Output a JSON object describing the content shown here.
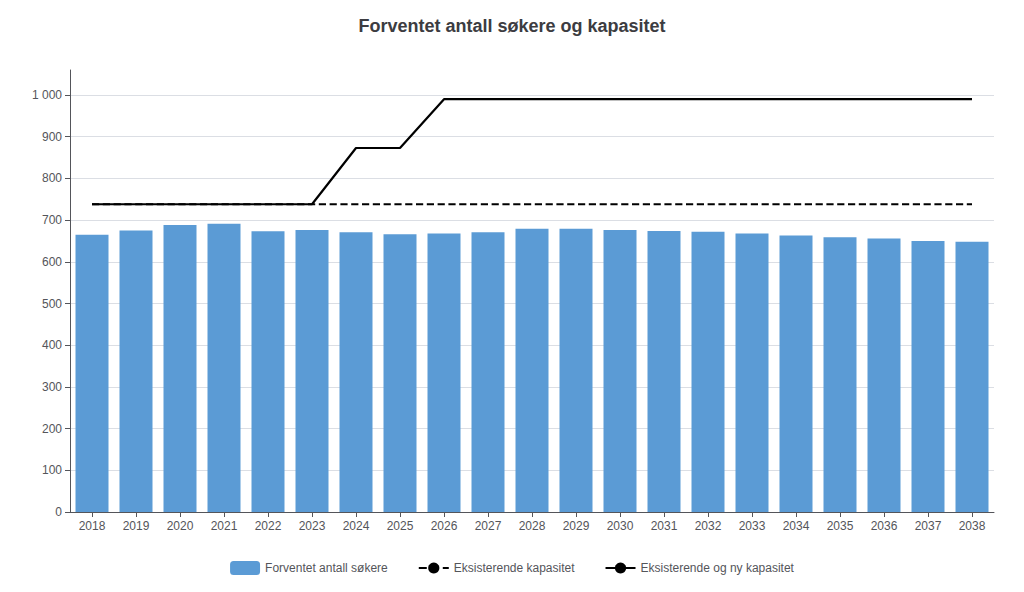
{
  "chart_data": {
    "type": "bar",
    "title": "Forventet antall søkere og kapasitet",
    "categories": [
      2018,
      2019,
      2020,
      2021,
      2022,
      2023,
      2024,
      2025,
      2026,
      2027,
      2028,
      2029,
      2030,
      2031,
      2032,
      2033,
      2034,
      2035,
      2036,
      2037,
      2038
    ],
    "series": [
      {
        "name": "Forventet antall søkere",
        "type": "bar",
        "color": "#5B9BD5",
        "values": [
          665,
          675,
          688,
          691,
          673,
          676,
          671,
          666,
          668,
          671,
          679,
          679,
          676,
          674,
          672,
          668,
          663,
          659,
          656,
          650,
          648
        ]
      },
      {
        "name": "Eksisterende kapasitet",
        "type": "line",
        "line_style": "dashed",
        "color": "#000000",
        "x": [
          2018,
          2038
        ],
        "values": [
          738,
          738
        ]
      },
      {
        "name": "Eksisterende og ny kapasitet",
        "type": "line",
        "line_style": "solid",
        "color": "#000000",
        "x": [
          2018,
          2023,
          2024,
          2025,
          2026,
          2038
        ],
        "values": [
          738,
          738,
          873,
          873,
          990,
          990
        ]
      }
    ],
    "ylim": [
      0,
      1060
    ],
    "yticks": [
      0,
      100,
      200,
      300,
      400,
      500,
      600,
      700,
      800,
      900,
      {
        "value": 1000,
        "label": "1 000"
      }
    ],
    "grid": true,
    "legend": "bottom"
  }
}
